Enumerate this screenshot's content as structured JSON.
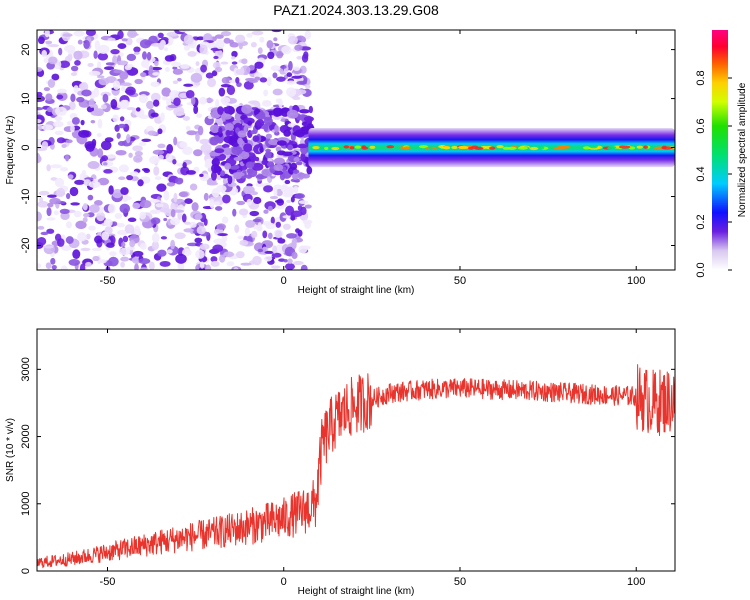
{
  "title": "PAZ1.2024.303.13.29.G08",
  "chart_data": [
    {
      "type": "heatmap",
      "xlabel": "Height of straight line (km)",
      "ylabel": "Frequency (Hz)",
      "xlim": [
        -70,
        111
      ],
      "ylim": [
        -25,
        24
      ],
      "xticks": [
        -50,
        0,
        50,
        100
      ],
      "yticks": [
        -20,
        -10,
        0,
        10,
        20
      ],
      "colorbar": {
        "label": "Normalized spectral amplitude",
        "ticks": [
          "0.0",
          "0.2",
          "0.4",
          "0.6",
          "0.8"
        ],
        "range": [
          0,
          1
        ]
      },
      "features": {
        "scattered_noise_x_range": [
          -70,
          7
        ],
        "concentrated_blob_x_range": [
          -20,
          8
        ],
        "concentrated_blob_freq_range": [
          -6,
          8
        ],
        "signal_band_x_range": [
          7,
          111
        ],
        "signal_band_center_freq": 0,
        "signal_band_halfwidth_hz": 2.5,
        "signal_band_peak_amplitude": 0.9
      }
    },
    {
      "type": "line",
      "xlabel": "Height of straight line (km)",
      "ylabel": "SNR (10 * v/v)",
      "xlim": [
        -70,
        111
      ],
      "ylim": [
        0,
        3600
      ],
      "xticks": [
        -50,
        0,
        50,
        100
      ],
      "yticks": [
        0,
        1000,
        2000,
        3000
      ],
      "color": "#e8342c",
      "trend": [
        [
          -70,
          120
        ],
        [
          -60,
          180
        ],
        [
          -50,
          280
        ],
        [
          -40,
          380
        ],
        [
          -30,
          480
        ],
        [
          -20,
          560
        ],
        [
          -10,
          660
        ],
        [
          0,
          780
        ],
        [
          6,
          900
        ],
        [
          9,
          1000
        ],
        [
          11,
          1900
        ],
        [
          14,
          2200
        ],
        [
          18,
          2400
        ],
        [
          22,
          2500
        ],
        [
          25,
          2550
        ],
        [
          30,
          2650
        ],
        [
          40,
          2700
        ],
        [
          50,
          2720
        ],
        [
          60,
          2700
        ],
        [
          70,
          2680
        ],
        [
          80,
          2650
        ],
        [
          90,
          2620
        ],
        [
          100,
          2600
        ],
        [
          105,
          2500
        ],
        [
          111,
          2550
        ]
      ]
    }
  ]
}
